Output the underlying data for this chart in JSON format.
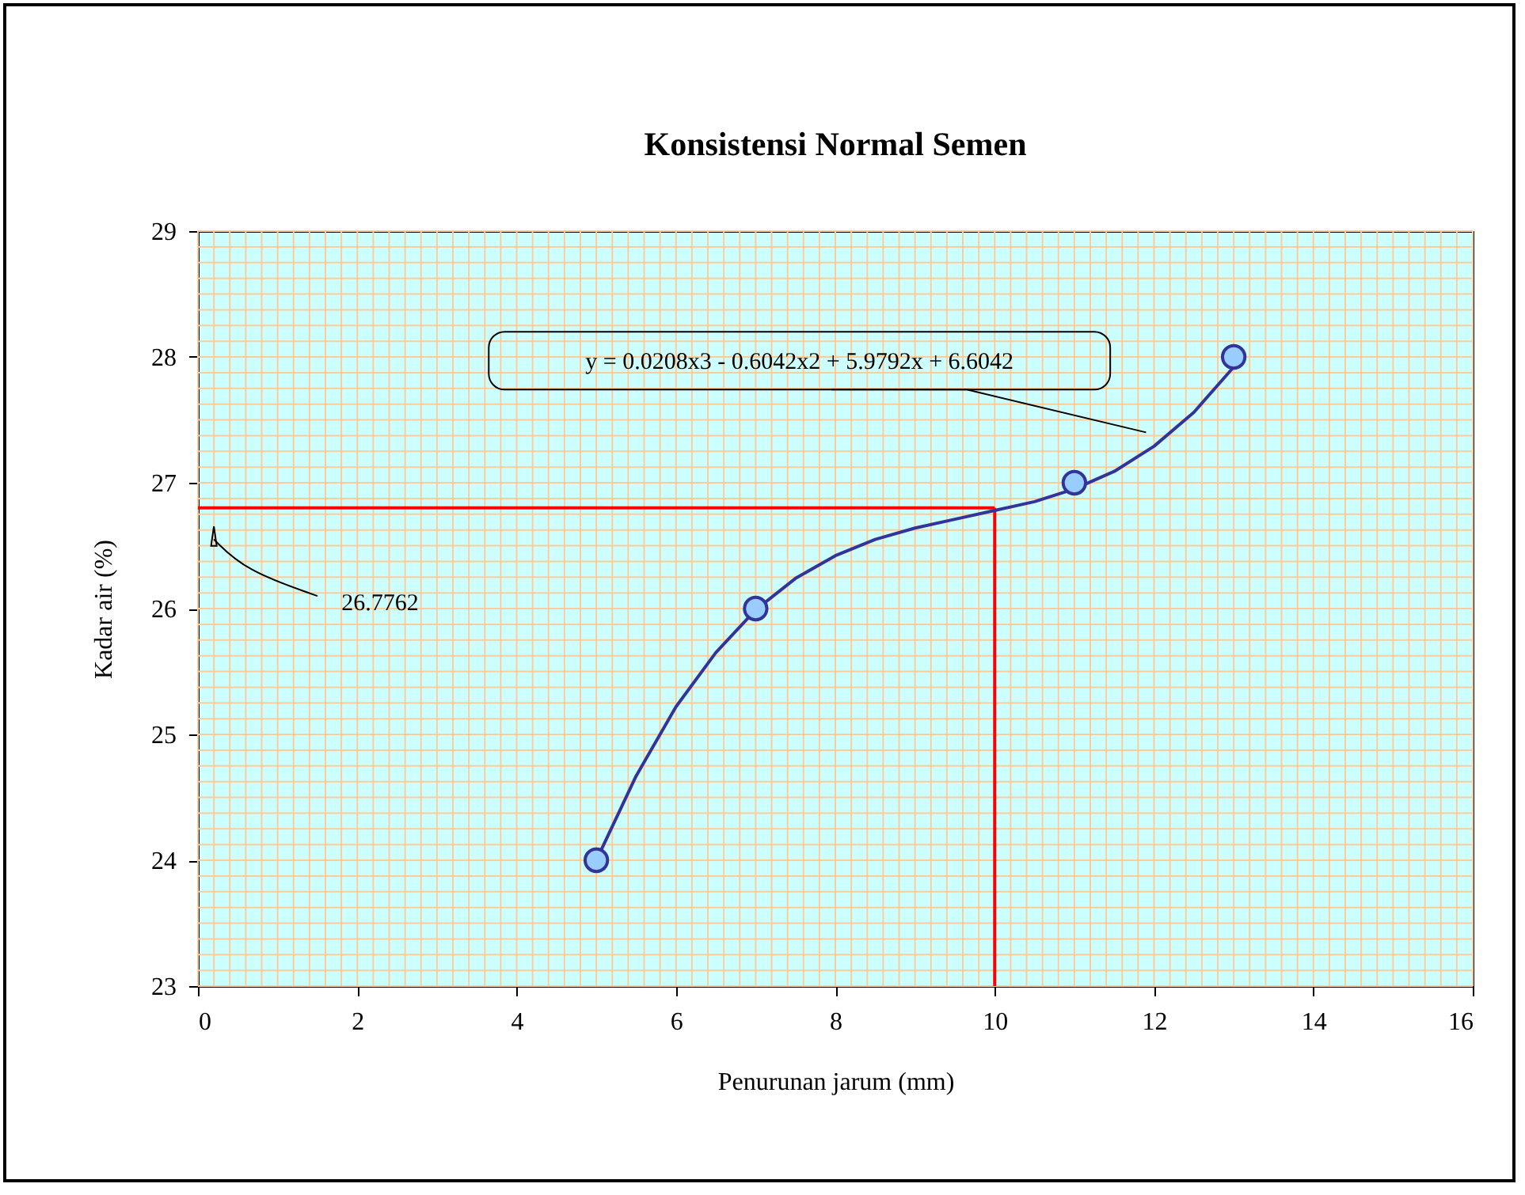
{
  "chart_data": {
    "type": "scatter",
    "title": "Konsistensi Normal Semen",
    "xlabel": "Penurunan jarum (mm)",
    "ylabel": "Kadar air (%)",
    "xlim": [
      0,
      16
    ],
    "xticks": [
      0,
      2,
      4,
      6,
      8,
      10,
      12,
      14,
      16
    ],
    "ylim": [
      23,
      29
    ],
    "yticks": [
      23,
      24,
      25,
      26,
      27,
      28,
      29
    ],
    "grid": true,
    "marker": "circle",
    "series": [
      {
        "type": "line",
        "color": "#333399",
        "marker": "none",
        "x": [
          5,
          5.5,
          6,
          6.5,
          7,
          7.5,
          8,
          8.5,
          9,
          9.5,
          10,
          10.5,
          11,
          11.5,
          12,
          12.5,
          13
        ],
        "values": [
          24.0,
          24.67,
          25.22,
          25.65,
          25.99,
          26.24,
          26.42,
          26.55,
          26.64,
          26.71,
          26.78,
          26.85,
          26.95,
          27.09,
          27.29,
          27.56,
          27.92
        ]
      },
      {
        "color": "#99ccff",
        "x": [
          5,
          7,
          11,
          13
        ],
        "values": [
          24,
          26,
          27,
          28
        ]
      }
    ],
    "ref_lines": [
      {
        "axis": "x",
        "value": 10,
        "color": "#ff0000"
      },
      {
        "axis": "y",
        "value": 26.8,
        "color": "#ff0000"
      }
    ],
    "annotations": [
      "y = 0.0208x3 - 0.6042x2 + 5.9792x + 6.6042",
      "26.7762"
    ]
  }
}
